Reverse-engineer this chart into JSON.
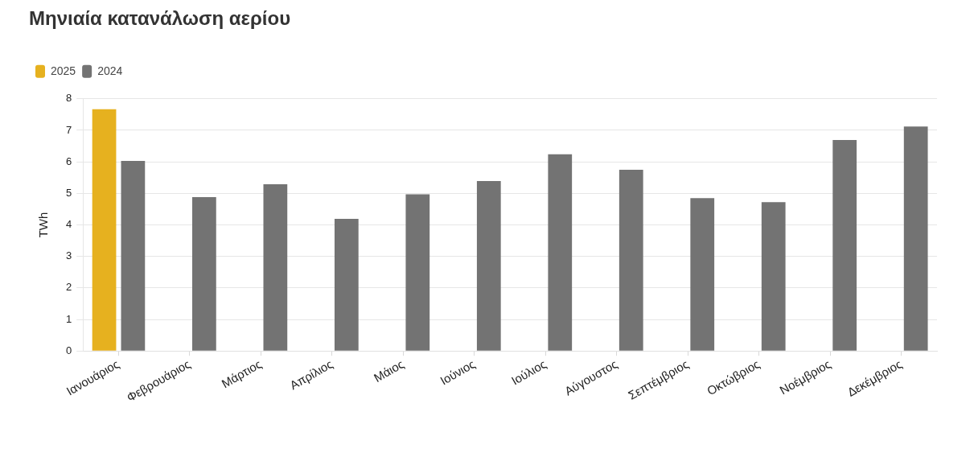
{
  "chart_data": {
    "type": "bar",
    "title": "Μηνιαία κατανάλωση αερίου",
    "ylabel": "TWh",
    "categories": [
      "Ιανουάριος",
      "Φεβρουάριος",
      "Μάρτιος",
      "Απρίλιος",
      "Μάιος",
      "Ιούνιος",
      "Ιούλιος",
      "Αύγουστος",
      "Σεπτέμβριος",
      "Οκτώβριος",
      "Νοέμβριος",
      "Δεκέμβριος"
    ],
    "series": [
      {
        "name": "2025",
        "color": "#e6b11f",
        "values": [
          7.67,
          null,
          null,
          null,
          null,
          null,
          null,
          null,
          null,
          null,
          null,
          null
        ]
      },
      {
        "name": "2024",
        "color": "#737373",
        "values": [
          6.03,
          4.88,
          5.29,
          4.19,
          4.97,
          5.39,
          6.24,
          5.75,
          4.85,
          4.72,
          6.69,
          7.12
        ]
      }
    ],
    "ylim": [
      0,
      8
    ],
    "yticks": [
      0,
      1,
      2,
      3,
      4,
      5,
      6,
      7,
      8
    ],
    "grid": "y",
    "legend": "top left"
  }
}
